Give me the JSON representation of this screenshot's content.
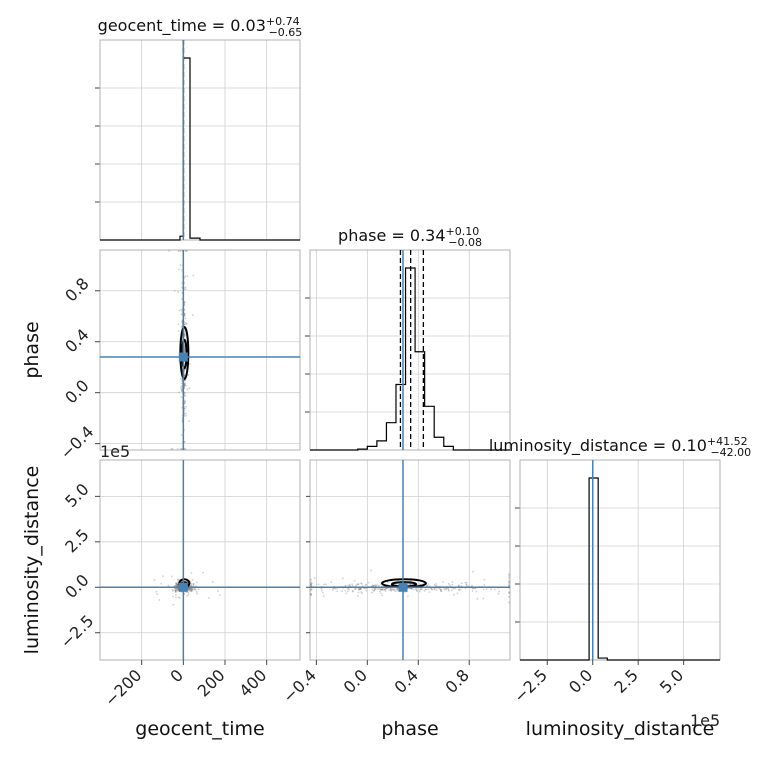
{
  "chart_data": {
    "type": "corner",
    "parameters": [
      "geocent_time",
      "phase",
      "luminosity_distance"
    ],
    "offset_label": "1e5",
    "titles": [
      {
        "param": "geocent_time",
        "median": "0.03",
        "plus": "+0.74",
        "minus": "−0.65"
      },
      {
        "param": "phase",
        "median": "0.34",
        "plus": "+0.10",
        "minus": "−0.08"
      },
      {
        "param": "luminosity_distance",
        "median": "0.10",
        "plus": "+41.52",
        "minus": "−42.00"
      }
    ],
    "truths": {
      "geocent_time": 0.0,
      "phase": 0.28,
      "luminosity_distance": 0.0
    },
    "axes": {
      "geocent_time": {
        "range": [
          -400,
          560
        ],
        "ticks": [
          -200,
          0,
          200,
          400
        ],
        "tick_labels": [
          "−200",
          "0",
          "200",
          "400"
        ]
      },
      "phase": {
        "range": [
          -0.45,
          1.12
        ],
        "ticks": [
          -0.4,
          0.0,
          0.4,
          0.8
        ],
        "tick_labels": [
          "−0.4",
          "0.0",
          "0.4",
          "0.8"
        ]
      },
      "luminosity_distance": {
        "range": [
          -4.0,
          7.0
        ],
        "ticks": [
          -2.5,
          0.0,
          2.5,
          5.0
        ],
        "tick_labels": [
          "−2.5",
          "0.0",
          "2.5",
          "5.0"
        ]
      }
    },
    "histograms": {
      "geocent_time": {
        "edges": [
          -400,
          -352,
          -304,
          -256,
          -208,
          -160,
          -112,
          -64,
          -16,
          0,
          32,
          80,
          128,
          176,
          224,
          272,
          320,
          368,
          416,
          464,
          512,
          560
        ],
        "values": [
          0,
          0,
          0,
          0,
          0,
          0,
          0,
          0,
          0.02,
          0.96,
          0.01,
          0,
          0,
          0,
          0,
          0,
          0,
          0,
          0,
          0,
          0
        ],
        "quantiles": [
          -0.62,
          0.03,
          0.77
        ]
      },
      "phase": {
        "edges": [
          -0.45,
          -0.375,
          -0.3,
          -0.225,
          -0.15,
          -0.075,
          0.0,
          0.075,
          0.15,
          0.225,
          0.3,
          0.375,
          0.45,
          0.525,
          0.6,
          0.675,
          0.75,
          0.825,
          0.9,
          0.975,
          1.05,
          1.12
        ],
        "values": [
          0,
          0,
          0,
          0,
          0,
          0.005,
          0.02,
          0.05,
          0.15,
          0.36,
          1.0,
          0.54,
          0.24,
          0.07,
          0.02,
          0,
          0,
          0,
          0,
          0,
          0
        ],
        "quantiles": [
          0.26,
          0.34,
          0.44
        ]
      },
      "luminosity_distance": {
        "edges": [
          -4.0,
          -3.5,
          -3.0,
          -2.5,
          -2.0,
          -1.5,
          -1.0,
          -0.5,
          -0.2,
          0.3,
          0.8,
          1.3,
          1.8,
          2.3,
          2.8,
          3.3,
          3.8,
          4.3,
          4.8,
          5.3,
          5.8,
          6.3,
          7.0
        ],
        "values": [
          0,
          0,
          0,
          0,
          0,
          0,
          0,
          0,
          0.94,
          0.01,
          0,
          0,
          0,
          0,
          0,
          0,
          0,
          0,
          0,
          0,
          0,
          0
        ],
        "quantiles": [
          -0.00042,
          1e-06,
          0.000415
        ]
      }
    },
    "scatter_notes": "2D panels show dense sample clouds centred on the truth values with black credible-interval contours",
    "grid": true
  }
}
